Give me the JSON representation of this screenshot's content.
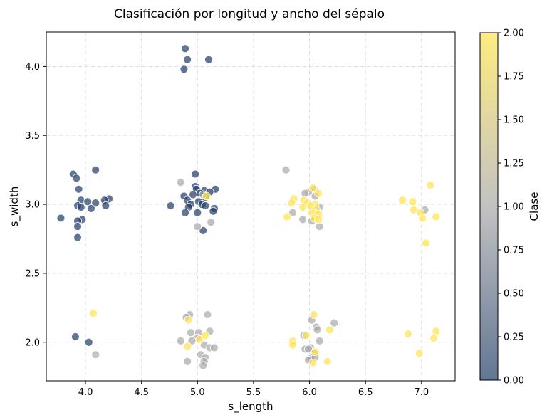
{
  "chart_data": {
    "type": "scatter",
    "title": "Clasificación por longitud y ancho del sépalo",
    "xlabel": "s_length",
    "ylabel": "s_width",
    "xlim": [
      3.65,
      7.3
    ],
    "ylim": [
      1.72,
      4.25
    ],
    "xticks": [
      4.0,
      4.5,
      5.0,
      5.5,
      6.0,
      6.5,
      7.0
    ],
    "xtick_labels": [
      "4.0",
      "4.5",
      "5.0",
      "5.5",
      "6.0",
      "6.5",
      "7.0"
    ],
    "yticks": [
      2.0,
      2.5,
      3.0,
      3.5,
      4.0
    ],
    "ytick_labels": [
      "2.0",
      "2.5",
      "3.0",
      "3.5",
      "4.0"
    ],
    "grid": true,
    "colorbar": {
      "label": "Clase",
      "range": [
        0,
        2
      ],
      "ticks": [
        0.0,
        0.25,
        0.5,
        0.75,
        1.0,
        1.25,
        1.5,
        1.75,
        2.0
      ],
      "tick_labels": [
        "0.00",
        "0.25",
        "0.50",
        "0.75",
        "1.00",
        "1.25",
        "1.50",
        "1.75",
        "2.00"
      ],
      "colormap": [
        "#1f3b66",
        "#a8a8a8",
        "#ffe34d"
      ]
    },
    "points": [
      {
        "x": 4.89,
        "y": 4.13,
        "c": 0
      },
      {
        "x": 4.91,
        "y": 4.05,
        "c": 0
      },
      {
        "x": 5.1,
        "y": 4.05,
        "c": 0
      },
      {
        "x": 4.88,
        "y": 3.98,
        "c": 0
      },
      {
        "x": 3.89,
        "y": 3.22,
        "c": 0
      },
      {
        "x": 4.09,
        "y": 3.25,
        "c": 0
      },
      {
        "x": 3.92,
        "y": 3.19,
        "c": 0
      },
      {
        "x": 3.94,
        "y": 3.11,
        "c": 0
      },
      {
        "x": 4.21,
        "y": 3.04,
        "c": 0
      },
      {
        "x": 4.17,
        "y": 3.03,
        "c": 0
      },
      {
        "x": 3.96,
        "y": 3.03,
        "c": 0
      },
      {
        "x": 4.02,
        "y": 3.02,
        "c": 0
      },
      {
        "x": 4.09,
        "y": 3.01,
        "c": 0
      },
      {
        "x": 3.93,
        "y": 2.99,
        "c": 0
      },
      {
        "x": 4.18,
        "y": 2.99,
        "c": 0
      },
      {
        "x": 3.96,
        "y": 2.98,
        "c": 0
      },
      {
        "x": 4.05,
        "y": 2.97,
        "c": 0
      },
      {
        "x": 3.78,
        "y": 2.9,
        "c": 0
      },
      {
        "x": 3.97,
        "y": 2.89,
        "c": 0
      },
      {
        "x": 3.93,
        "y": 2.88,
        "c": 0
      },
      {
        "x": 3.93,
        "y": 2.84,
        "c": 0
      },
      {
        "x": 3.93,
        "y": 2.76,
        "c": 0
      },
      {
        "x": 4.98,
        "y": 3.22,
        "c": 0
      },
      {
        "x": 4.98,
        "y": 3.13,
        "c": 0
      },
      {
        "x": 4.99,
        "y": 3.11,
        "c": 0
      },
      {
        "x": 5.16,
        "y": 3.11,
        "c": 0
      },
      {
        "x": 5.06,
        "y": 3.1,
        "c": 0
      },
      {
        "x": 5.11,
        "y": 3.09,
        "c": 0
      },
      {
        "x": 5.02,
        "y": 3.08,
        "c": 0
      },
      {
        "x": 4.96,
        "y": 3.07,
        "c": 0
      },
      {
        "x": 4.88,
        "y": 3.06,
        "c": 0
      },
      {
        "x": 5.07,
        "y": 3.05,
        "c": 0
      },
      {
        "x": 4.91,
        "y": 3.03,
        "c": 0
      },
      {
        "x": 5.01,
        "y": 3.02,
        "c": 0
      },
      {
        "x": 4.94,
        "y": 3.0,
        "c": 0
      },
      {
        "x": 5.04,
        "y": 3.0,
        "c": 0
      },
      {
        "x": 4.76,
        "y": 2.99,
        "c": 0
      },
      {
        "x": 5.07,
        "y": 2.99,
        "c": 0
      },
      {
        "x": 4.92,
        "y": 2.98,
        "c": 0
      },
      {
        "x": 5.15,
        "y": 2.97,
        "c": 0
      },
      {
        "x": 5.14,
        "y": 2.95,
        "c": 0
      },
      {
        "x": 4.89,
        "y": 2.94,
        "c": 0
      },
      {
        "x": 5.0,
        "y": 2.94,
        "c": 0
      },
      {
        "x": 5.05,
        "y": 2.81,
        "c": 0
      },
      {
        "x": 3.91,
        "y": 2.04,
        "c": 0
      },
      {
        "x": 4.03,
        "y": 2.0,
        "c": 0
      },
      {
        "x": 4.85,
        "y": 3.16,
        "c": 1
      },
      {
        "x": 5.12,
        "y": 2.87,
        "c": 1
      },
      {
        "x": 5.0,
        "y": 2.84,
        "c": 1
      },
      {
        "x": 5.05,
        "y": 3.07,
        "c": 1
      },
      {
        "x": 5.79,
        "y": 3.25,
        "c": 1
      },
      {
        "x": 6.04,
        "y": 3.11,
        "c": 1
      },
      {
        "x": 5.99,
        "y": 3.09,
        "c": 1
      },
      {
        "x": 5.96,
        "y": 3.08,
        "c": 1
      },
      {
        "x": 6.05,
        "y": 3.06,
        "c": 1
      },
      {
        "x": 6.09,
        "y": 2.98,
        "c": 1
      },
      {
        "x": 5.85,
        "y": 2.94,
        "c": 1
      },
      {
        "x": 5.94,
        "y": 2.89,
        "c": 1
      },
      {
        "x": 6.02,
        "y": 2.88,
        "c": 1
      },
      {
        "x": 6.09,
        "y": 2.84,
        "c": 1
      },
      {
        "x": 7.03,
        "y": 2.96,
        "c": 1
      },
      {
        "x": 4.93,
        "y": 2.2,
        "c": 1
      },
      {
        "x": 4.9,
        "y": 2.18,
        "c": 1
      },
      {
        "x": 5.09,
        "y": 2.2,
        "c": 1
      },
      {
        "x": 4.94,
        "y": 2.07,
        "c": 1
      },
      {
        "x": 5.01,
        "y": 2.07,
        "c": 1
      },
      {
        "x": 5.11,
        "y": 2.08,
        "c": 1
      },
      {
        "x": 5.0,
        "y": 2.03,
        "c": 1
      },
      {
        "x": 4.95,
        "y": 2.01,
        "c": 1
      },
      {
        "x": 4.85,
        "y": 2.01,
        "c": 1
      },
      {
        "x": 5.06,
        "y": 1.98,
        "c": 1
      },
      {
        "x": 5.11,
        "y": 1.96,
        "c": 1
      },
      {
        "x": 5.15,
        "y": 1.96,
        "c": 1
      },
      {
        "x": 5.03,
        "y": 1.91,
        "c": 1
      },
      {
        "x": 5.07,
        "y": 1.89,
        "c": 1
      },
      {
        "x": 4.91,
        "y": 1.86,
        "c": 1
      },
      {
        "x": 5.06,
        "y": 1.86,
        "c": 1
      },
      {
        "x": 5.05,
        "y": 1.83,
        "c": 1
      },
      {
        "x": 4.09,
        "y": 1.91,
        "c": 1
      },
      {
        "x": 6.22,
        "y": 2.14,
        "c": 1
      },
      {
        "x": 6.02,
        "y": 2.16,
        "c": 1
      },
      {
        "x": 6.06,
        "y": 2.11,
        "c": 1
      },
      {
        "x": 6.07,
        "y": 2.09,
        "c": 1
      },
      {
        "x": 5.95,
        "y": 2.05,
        "c": 1
      },
      {
        "x": 6.09,
        "y": 2.01,
        "c": 1
      },
      {
        "x": 5.96,
        "y": 1.95,
        "c": 1
      },
      {
        "x": 6.01,
        "y": 1.96,
        "c": 1
      },
      {
        "x": 5.99,
        "y": 1.95,
        "c": 1
      },
      {
        "x": 6.04,
        "y": 1.92,
        "c": 1
      },
      {
        "x": 6.01,
        "y": 1.88,
        "c": 1
      },
      {
        "x": 5.99,
        "y": 1.87,
        "c": 1
      },
      {
        "x": 6.05,
        "y": 1.89,
        "c": 1
      },
      {
        "x": 5.08,
        "y": 3.06,
        "c": 2
      },
      {
        "x": 4.92,
        "y": 2.16,
        "c": 2
      },
      {
        "x": 5.02,
        "y": 2.02,
        "c": 2
      },
      {
        "x": 5.07,
        "y": 2.05,
        "c": 2
      },
      {
        "x": 4.91,
        "y": 1.97,
        "c": 2
      },
      {
        "x": 4.07,
        "y": 2.21,
        "c": 2
      },
      {
        "x": 6.03,
        "y": 3.12,
        "c": 2
      },
      {
        "x": 6.08,
        "y": 3.08,
        "c": 2
      },
      {
        "x": 5.86,
        "y": 3.04,
        "c": 2
      },
      {
        "x": 5.95,
        "y": 3.03,
        "c": 2
      },
      {
        "x": 5.84,
        "y": 3.01,
        "c": 2
      },
      {
        "x": 5.98,
        "y": 3.01,
        "c": 2
      },
      {
        "x": 6.05,
        "y": 3.0,
        "c": 2
      },
      {
        "x": 6.01,
        "y": 2.99,
        "c": 2
      },
      {
        "x": 5.94,
        "y": 2.98,
        "c": 2
      },
      {
        "x": 6.06,
        "y": 2.96,
        "c": 2
      },
      {
        "x": 6.02,
        "y": 2.94,
        "c": 2
      },
      {
        "x": 6.08,
        "y": 2.93,
        "c": 2
      },
      {
        "x": 5.8,
        "y": 2.91,
        "c": 2
      },
      {
        "x": 6.04,
        "y": 2.9,
        "c": 2
      },
      {
        "x": 6.08,
        "y": 2.89,
        "c": 2
      },
      {
        "x": 6.83,
        "y": 3.03,
        "c": 2
      },
      {
        "x": 6.92,
        "y": 3.02,
        "c": 2
      },
      {
        "x": 7.08,
        "y": 3.14,
        "c": 2
      },
      {
        "x": 6.93,
        "y": 2.96,
        "c": 2
      },
      {
        "x": 6.99,
        "y": 2.94,
        "c": 2
      },
      {
        "x": 7.01,
        "y": 2.9,
        "c": 2
      },
      {
        "x": 7.13,
        "y": 2.91,
        "c": 2
      },
      {
        "x": 7.04,
        "y": 2.72,
        "c": 2
      },
      {
        "x": 6.04,
        "y": 2.2,
        "c": 2
      },
      {
        "x": 6.18,
        "y": 2.09,
        "c": 2
      },
      {
        "x": 5.97,
        "y": 2.05,
        "c": 2
      },
      {
        "x": 5.85,
        "y": 2.01,
        "c": 2
      },
      {
        "x": 5.85,
        "y": 1.98,
        "c": 2
      },
      {
        "x": 6.05,
        "y": 1.93,
        "c": 2
      },
      {
        "x": 6.16,
        "y": 1.86,
        "c": 2
      },
      {
        "x": 6.03,
        "y": 1.85,
        "c": 2
      },
      {
        "x": 6.88,
        "y": 2.06,
        "c": 2
      },
      {
        "x": 7.13,
        "y": 2.08,
        "c": 2
      },
      {
        "x": 7.11,
        "y": 2.03,
        "c": 2
      },
      {
        "x": 6.98,
        "y": 1.92,
        "c": 2
      }
    ]
  }
}
